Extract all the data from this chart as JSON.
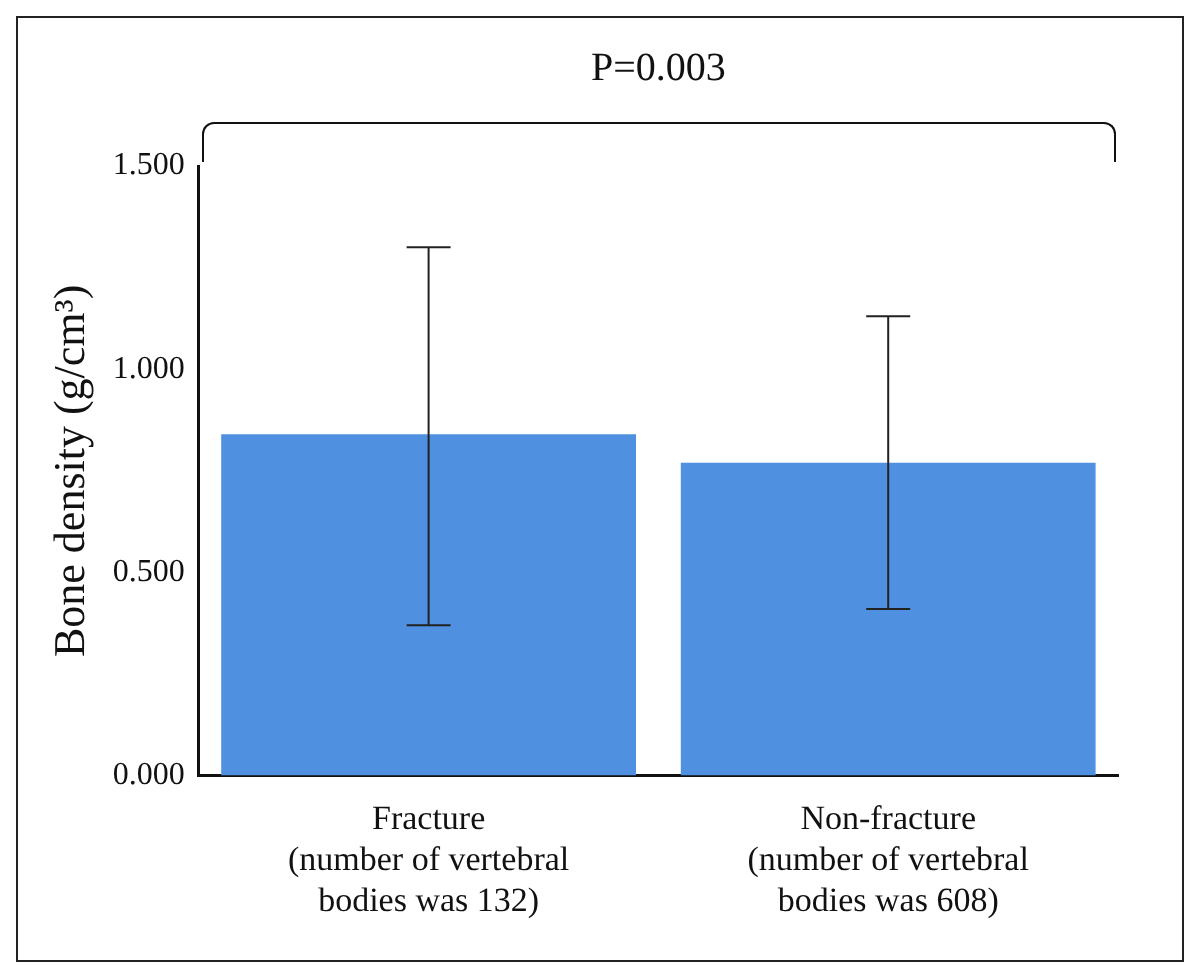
{
  "chart_data": {
    "type": "bar",
    "ylabel": "Bone density (g/cm³)",
    "categories": [
      "Fracture\n(number of vertebral\nbodies was 132)",
      "Non-fracture\n(number of vertebral\nbodies was 608)"
    ],
    "values": [
      0.84,
      0.77
    ],
    "color": "#5090e0",
    "errors": [
      [
        0.37,
        1.3
      ],
      [
        0.41,
        1.13
      ]
    ],
    "ylim": [
      0,
      1.5
    ],
    "yticks": [
      {
        "value": 0,
        "label": "0.000"
      },
      {
        "value": 0.5,
        "label": "0.500"
      },
      {
        "value": 1,
        "label": "1.000"
      },
      {
        "value": 1.5,
        "label": "1.500"
      }
    ],
    "grid": false,
    "legend": false,
    "annotations": [
      "P=0.003"
    ]
  }
}
